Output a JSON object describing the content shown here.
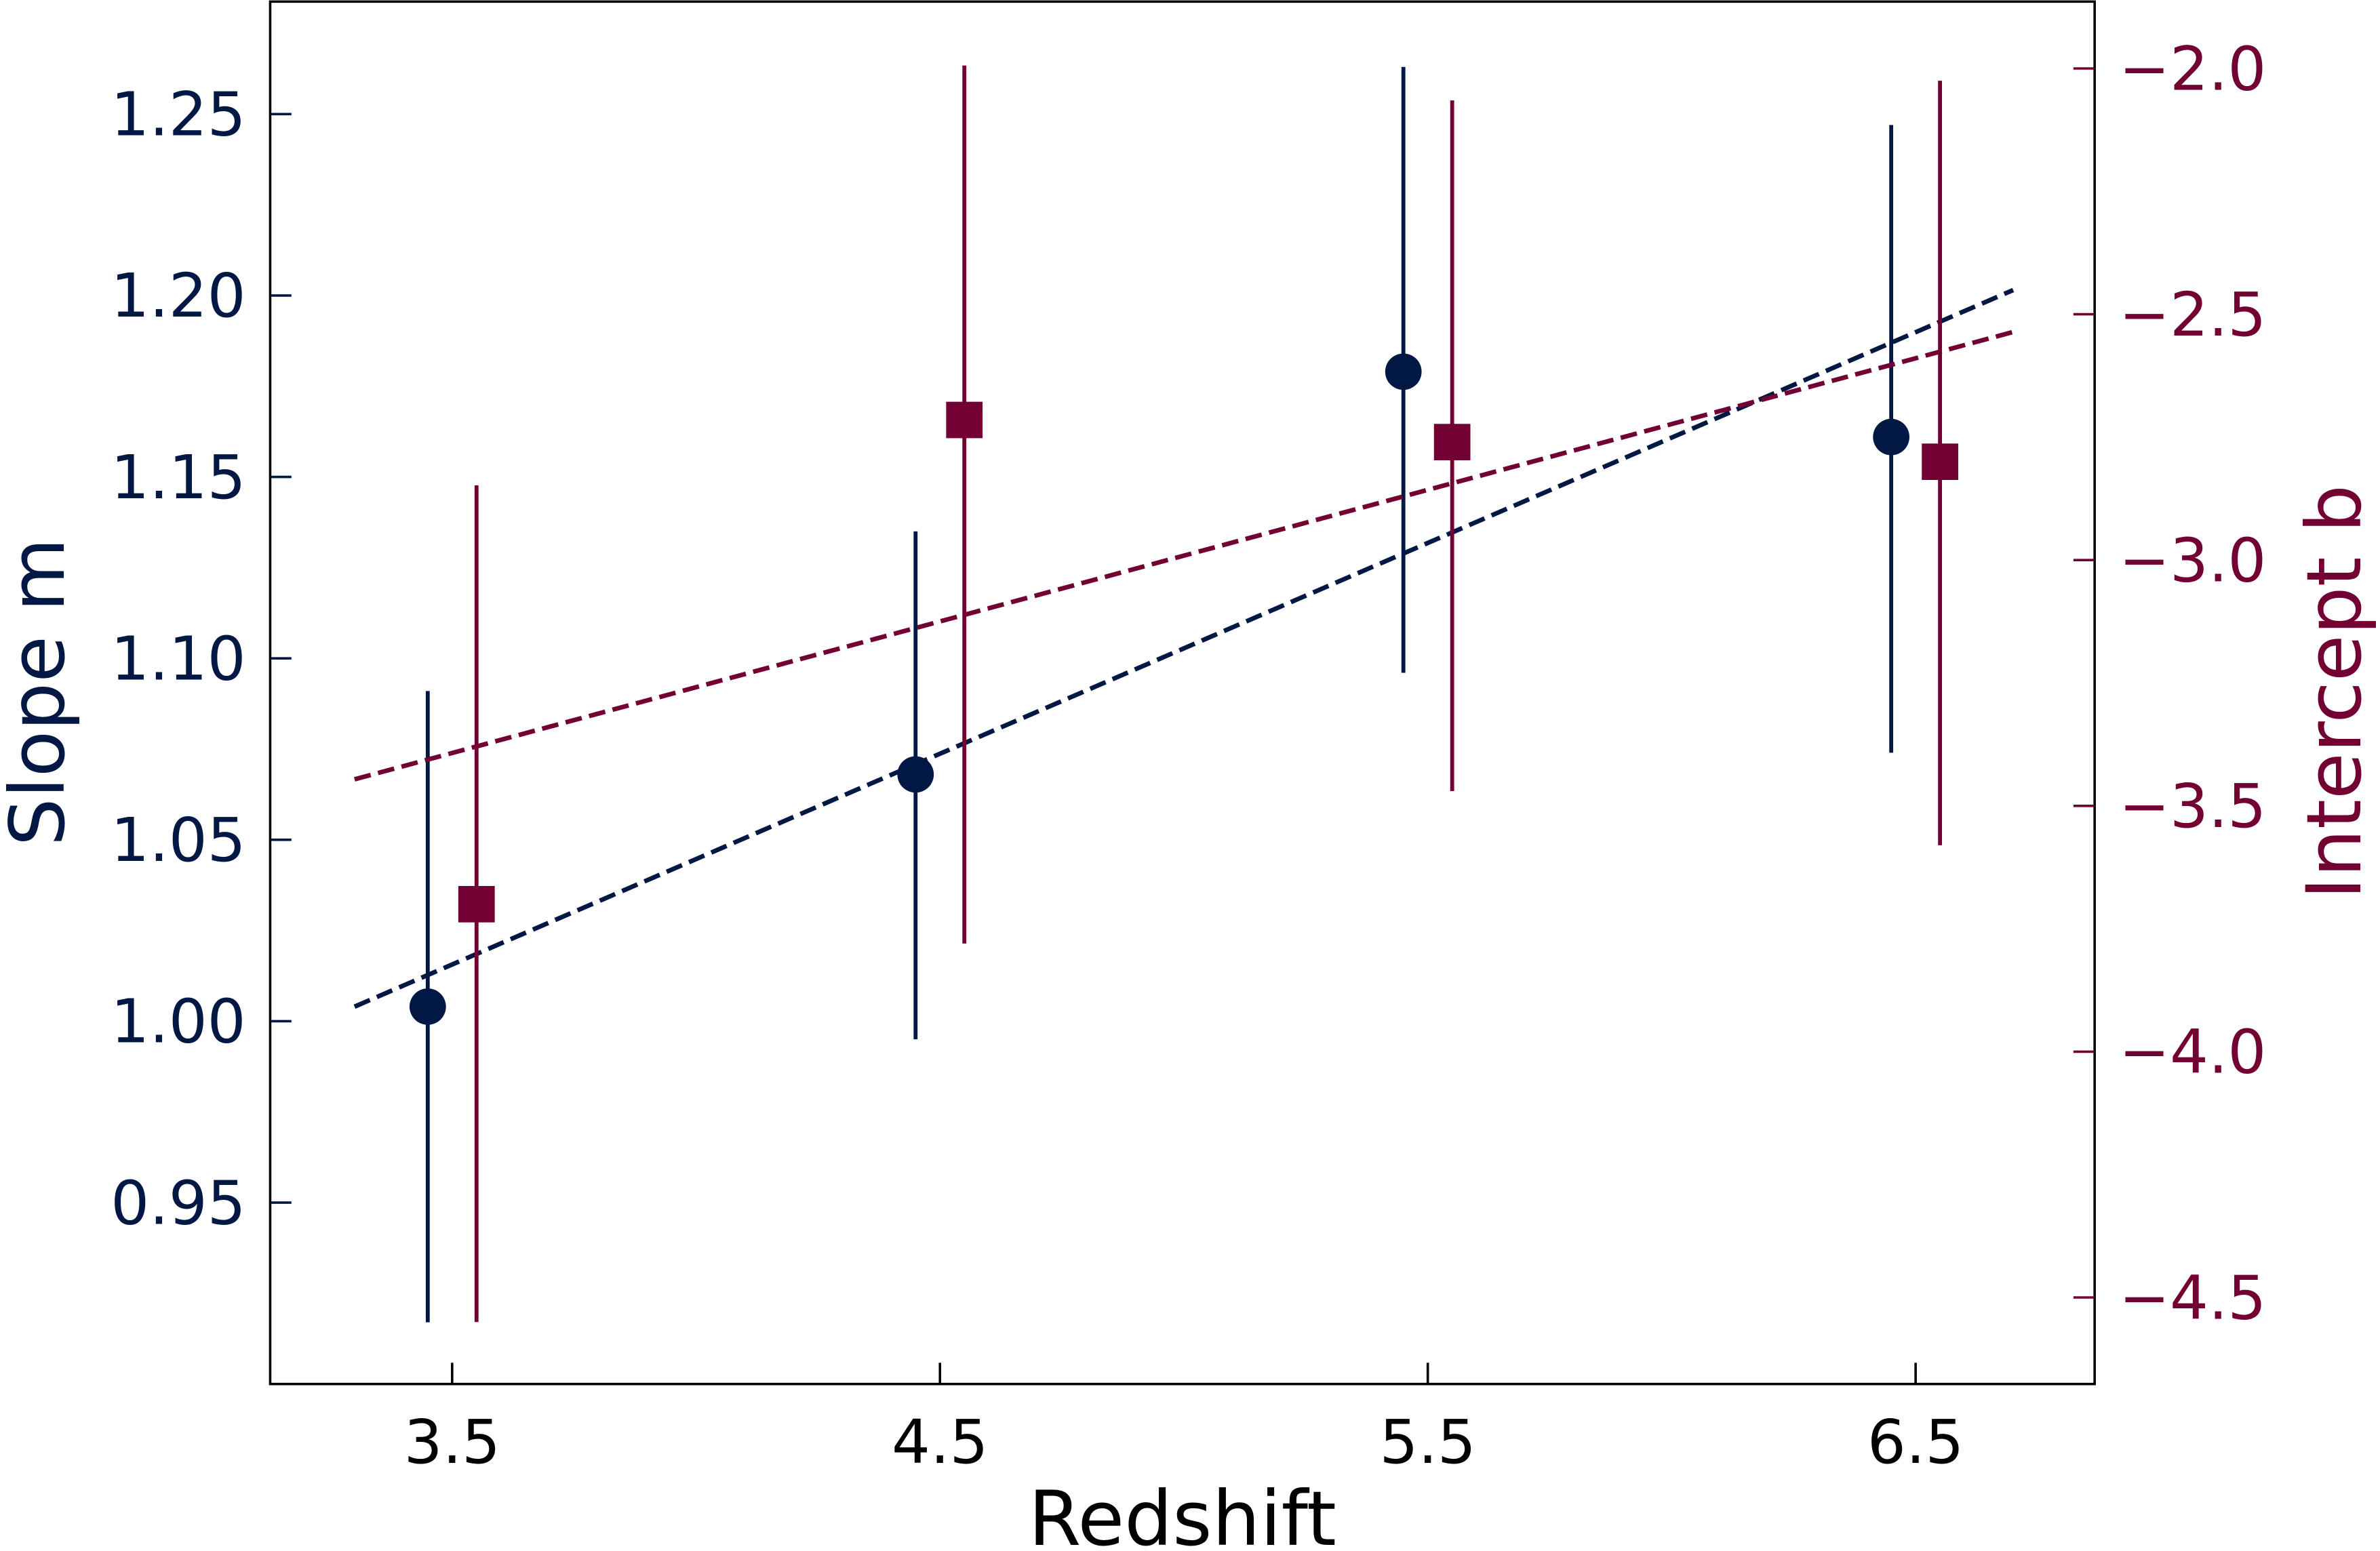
{
  "chart_data": {
    "type": "scatter",
    "xlabel": "Redshift",
    "ylabel_left": "Slope m",
    "ylabel_right": "Intercept b",
    "xlim": [
      3.127,
      6.867
    ],
    "ylim_left": [
      0.9,
      1.281
    ],
    "ylim_right": [
      -4.676,
      -1.864
    ],
    "x_ticks": [
      "3.5",
      "4.5",
      "5.5",
      "6.5"
    ],
    "x_tick_values": [
      3.5,
      4.5,
      5.5,
      6.5
    ],
    "y_left_ticks": [
      "0.95",
      "1.00",
      "1.05",
      "1.10",
      "1.15",
      "1.20",
      "1.25"
    ],
    "y_left_tick_values": [
      0.95,
      1.0,
      1.05,
      1.1,
      1.15,
      1.2,
      1.25
    ],
    "y_right_ticks": [
      "−4.5",
      "−4.0",
      "−3.5",
      "−3.0",
      "−2.5",
      "−2.0"
    ],
    "y_right_tick_values": [
      -4.5,
      -4.0,
      -3.5,
      -3.0,
      -2.5,
      -2.0
    ],
    "grid": false,
    "colors": {
      "slope": "#011844",
      "intercept": "#730033"
    },
    "series": [
      {
        "name": "Slope m",
        "axis": "left",
        "marker": "circle",
        "x": [
          3.45,
          4.45,
          5.45,
          6.45
        ],
        "y": [
          1.004,
          1.068,
          1.179,
          1.161
        ],
        "err_low": [
          0.917,
          0.995,
          1.096,
          1.074
        ],
        "err_high": [
          1.091,
          1.135,
          1.263,
          1.247
        ],
        "fit": {
          "x": [
            3.3,
            6.7
          ],
          "y": [
            1.004,
            1.2015
          ]
        }
      },
      {
        "name": "Intercept b",
        "axis": "right",
        "marker": "square",
        "x": [
          3.55,
          4.55,
          5.55,
          6.55
        ],
        "y": [
          -3.7,
          -2.715,
          -2.76,
          -2.8
        ],
        "err_low": [
          -4.55,
          -3.78,
          -3.47,
          -3.58
        ],
        "err_high": [
          -2.848,
          -1.994,
          -2.065,
          -2.025
        ],
        "fit": {
          "x": [
            3.3,
            6.7
          ],
          "y": [
            -3.446,
            -2.536
          ]
        }
      }
    ]
  }
}
